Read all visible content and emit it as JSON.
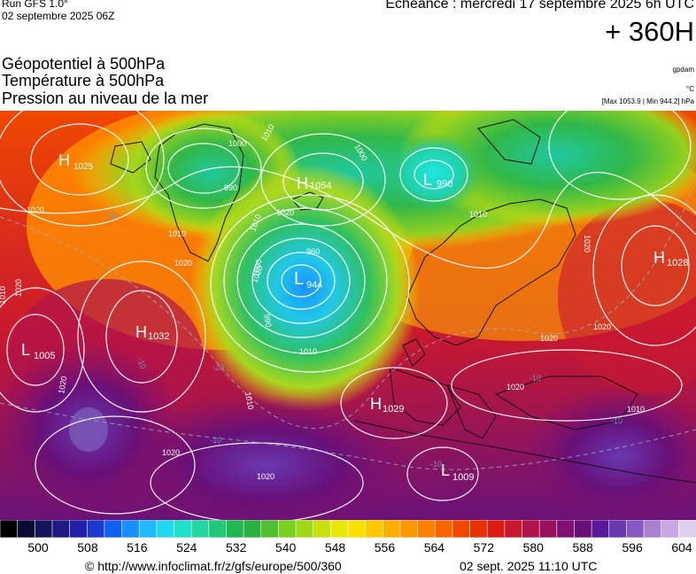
{
  "header": {
    "run": "Run GFS 1.0°",
    "run_date": "02 septembre 2025 06Z",
    "echeance": "Echéance : mercredi 17 septembre 2025 6h UTC",
    "hours": "+ 360H"
  },
  "titles": {
    "line1": "Géopotentiel à 500hPa",
    "line2": "Température à 500hPa",
    "line3": "Pression au niveau de la mer"
  },
  "units": {
    "geo": "gpdam",
    "temp": "°C",
    "maxmin": "[Max 1053.9 | Min 944.2] hPa"
  },
  "colorbar": {
    "colors": [
      "#000000",
      "#0a0a32",
      "#14145a",
      "#1c1c82",
      "#2020a8",
      "#1a3ad0",
      "#1060f0",
      "#1890ff",
      "#20b8ff",
      "#20d8f0",
      "#20e0c8",
      "#20d8a0",
      "#20c878",
      "#20b850",
      "#2cb040",
      "#50c030",
      "#78d020",
      "#a0d818",
      "#c8e010",
      "#e8e808",
      "#f8e000",
      "#ffc800",
      "#ffb000",
      "#ff9800",
      "#ff8000",
      "#f86400",
      "#f04800",
      "#e83000",
      "#dc1c10",
      "#c81830",
      "#b01448",
      "#981060",
      "#801070",
      "#681078",
      "#581898",
      "#6838b0",
      "#8858c0",
      "#a880d0",
      "#c8a8e0",
      "#e0d0f0"
    ],
    "ticks": [
      {
        "label": "500"
      },
      {
        "label": "508"
      },
      {
        "label": "516"
      },
      {
        "label": "524"
      },
      {
        "label": "532"
      },
      {
        "label": "540"
      },
      {
        "label": "548"
      },
      {
        "label": "556"
      },
      {
        "label": "564"
      },
      {
        "label": "572"
      },
      {
        "label": "580"
      },
      {
        "label": "588"
      },
      {
        "label": "596"
      },
      {
        "label": "604"
      }
    ]
  },
  "pressure_centers": [
    {
      "type": "H",
      "value": "1025"
    },
    {
      "type": "H",
      "value": "1054"
    },
    {
      "type": "L",
      "value": "990"
    },
    {
      "type": "L",
      "value": "944"
    },
    {
      "type": "H",
      "value": "1028"
    },
    {
      "type": "H",
      "value": "1032"
    },
    {
      "type": "L",
      "value": "1005"
    },
    {
      "type": "H",
      "value": "1029"
    },
    {
      "type": "L",
      "value": "1009"
    }
  ],
  "isobar_labels": [
    "1000",
    "1010",
    "1000",
    "990",
    "1020",
    "1010",
    "1020",
    "1020",
    "1010",
    "1020",
    "1010",
    "1020",
    "960",
    "1000",
    "990",
    "1010",
    "1020",
    "1010",
    "1020",
    "1020",
    "1020",
    "1020",
    "1010",
    "1020",
    "1010",
    "1020"
  ],
  "temp_labels": [
    "-20",
    "-20",
    "-10",
    "-10",
    "-10",
    "-10",
    "-10"
  ],
  "footer": {
    "credit": "© http://www.infoclimat.fr/z/gfs/europe/500/360",
    "timestamp": "02 sept. 2025 11:10 UTC"
  }
}
